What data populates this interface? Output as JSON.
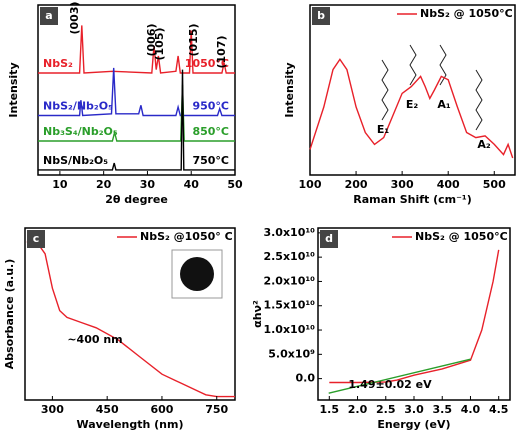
{
  "chart_data": [
    {
      "type": "line",
      "panel": "a",
      "xlabel": "2θ degree",
      "ylabel": "Intensity",
      "xlim": [
        5,
        50
      ],
      "xticks": [
        10,
        20,
        30,
        40,
        50
      ],
      "ylim": [
        0,
        100
      ],
      "series_labels": true,
      "annotations": [
        "(003)",
        "(006)",
        "(105)",
        "(015)",
        "(107)"
      ],
      "series": [
        {
          "name": "NbS₂",
          "temperature": "1050°C",
          "color": "#e8212a",
          "x": [
            5,
            14.5,
            15,
            15.5,
            22,
            31,
            31.5,
            32,
            32.5,
            33,
            36.5,
            37,
            37.5,
            39.6,
            40,
            40.4,
            47,
            47.5,
            48,
            50
          ],
          "values": [
            60,
            60,
            88,
            60,
            61,
            60,
            76,
            62,
            70,
            60,
            61,
            70,
            60,
            60,
            85,
            60,
            60,
            66,
            60,
            60
          ]
        },
        {
          "name": "NbS₂/Nb₂O₅",
          "temperature": "950°C",
          "color": "#2a2ac8",
          "x": [
            5,
            14.5,
            14.8,
            15.2,
            21.8,
            22.3,
            22.8,
            28,
            28.5,
            29,
            36.5,
            37,
            37.5,
            46,
            46.5,
            47,
            50
          ],
          "values": [
            35,
            35,
            44,
            35,
            36,
            63,
            36,
            36,
            41,
            35,
            35,
            40,
            35,
            35,
            39,
            35,
            35
          ]
        },
        {
          "name": "Nb₃S₄/Nb₂O₅",
          "temperature": "850°C",
          "color": "#2a9e2a",
          "x": [
            5,
            22,
            22.5,
            23,
            37.6,
            38,
            38.4,
            50
          ],
          "values": [
            20,
            20,
            25,
            20,
            20,
            53,
            20,
            20
          ]
        },
        {
          "name": "NbS/Nb₂O₅",
          "temperature": "750°C",
          "color": "#000000",
          "x": [
            5,
            22,
            22.4,
            22.8,
            37.7,
            38,
            38.3,
            50
          ],
          "values": [
            3,
            3,
            7,
            3,
            3,
            62,
            3,
            3
          ]
        }
      ]
    },
    {
      "type": "line",
      "panel": "b",
      "xlabel": "Raman Shift (cm⁻¹)",
      "ylabel": "Intensity",
      "xlim": [
        100,
        545
      ],
      "xticks": [
        100,
        200,
        300,
        400,
        500
      ],
      "ylim": [
        0,
        100
      ],
      "legend": "upper right",
      "annotations": [
        "E₁",
        "E₂",
        "A₁",
        "A₂"
      ],
      "series": [
        {
          "name": "NbS₂ @ 1050°C",
          "color": "#e8212a",
          "x": [
            100,
            130,
            150,
            165,
            180,
            200,
            220,
            240,
            260,
            280,
            300,
            320,
            340,
            350,
            360,
            370,
            385,
            400,
            420,
            440,
            460,
            480,
            500,
            520,
            530,
            540
          ],
          "values": [
            15,
            40,
            62,
            68,
            62,
            40,
            25,
            18,
            22,
            35,
            48,
            52,
            58,
            52,
            45,
            50,
            58,
            56,
            40,
            25,
            22,
            23,
            18,
            12,
            18,
            10
          ]
        }
      ]
    },
    {
      "type": "line",
      "panel": "c",
      "xlabel": "Wavelength (nm)",
      "ylabel": "Absorbance (a.u.)",
      "xlim": [
        225,
        800
      ],
      "xticks": [
        300,
        450,
        600,
        750
      ],
      "ylim": [
        0,
        100
      ],
      "legend": "upper right",
      "annotations": [
        "~400 nm"
      ],
      "series": [
        {
          "name": "NbS₂ @1050° C",
          "color": "#e8212a",
          "x": [
            230,
            260,
            280,
            300,
            320,
            340,
            380,
            420,
            480,
            540,
            600,
            650,
            700,
            720,
            750,
            800
          ],
          "values": [
            92,
            91,
            85,
            65,
            52,
            48,
            45,
            42,
            35,
            25,
            15,
            10,
            5,
            3,
            2,
            2
          ]
        }
      ]
    },
    {
      "type": "line",
      "panel": "d",
      "xlabel": "Energy (eV)",
      "ylabel": "αhν²",
      "xlim": [
        1.3,
        4.7
      ],
      "xticks": [
        1.5,
        {
          "value": 2,
          "label": "2.0"
        },
        2.5,
        {
          "value": 3,
          "label": "3.0"
        },
        3.5,
        {
          "value": 4,
          "label": "4.0"
        },
        4.5
      ],
      "ylim": [
        -4400000000,
        31000000000
      ],
      "yticks": [
        {
          "value": 0,
          "label": "0.0"
        },
        {
          "value": 5000000000,
          "label": "5.0x10⁹"
        },
        {
          "value": 10000000000,
          "label": "1.0x10¹⁰"
        },
        {
          "value": 15000000000,
          "label": "1.5x10¹⁰"
        },
        {
          "value": 20000000000,
          "label": "2.0x10¹⁰"
        },
        {
          "value": 25000000000,
          "label": "2.5x10¹⁰"
        },
        {
          "value": 30000000000,
          "label": "3.0x10¹⁰"
        }
      ],
      "legend": "upper right",
      "annotations": [
        "1.49±0.02 eV"
      ],
      "series": [
        {
          "name": "NbS₂ @ 1050°C",
          "color": "#e8212a",
          "x": [
            1.5,
            2.0,
            2.5,
            2.7,
            3.0,
            3.5,
            4.0,
            4.2,
            4.4,
            4.5
          ],
          "values": [
            -800000000,
            -800000000,
            -700000000,
            -300000000,
            700000000,
            2000000000,
            3800000000,
            10000000000,
            20000000000,
            26500000000
          ]
        },
        {
          "color": "#2a9e2a",
          "x": [
            1.49,
            4.0
          ],
          "values": [
            -3000000000,
            4000000000
          ]
        }
      ]
    }
  ]
}
